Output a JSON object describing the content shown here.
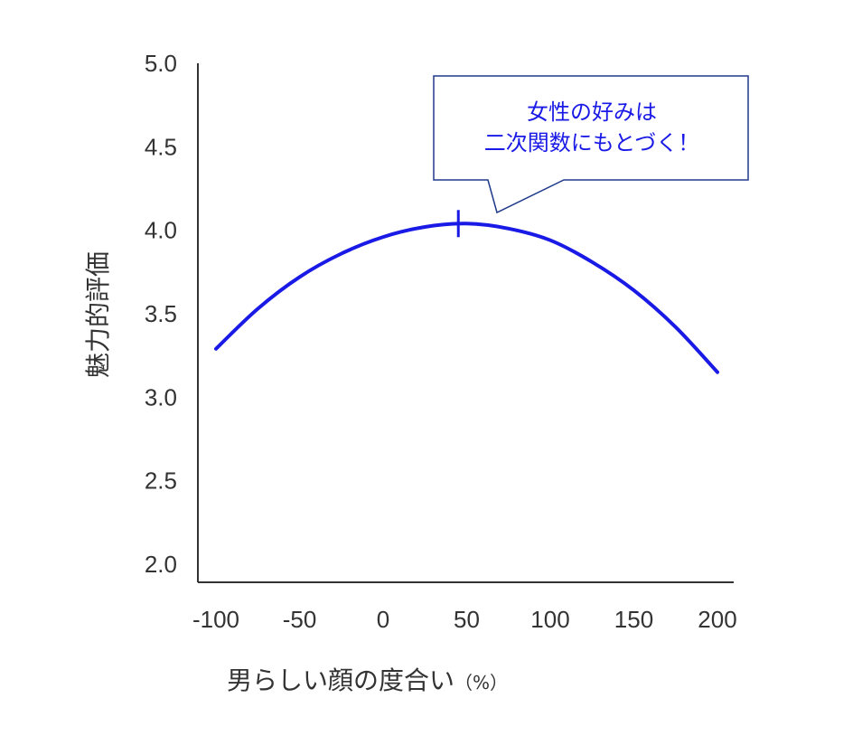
{
  "chart_data": {
    "type": "line",
    "xlabel": "男らしい顔の度合い",
    "xlabel_unit": "（%）",
    "ylabel": "魅力的評価",
    "xlim": [
      -100,
      200
    ],
    "ylim": [
      2.0,
      5.0
    ],
    "x_ticks": [
      "-100",
      "-50",
      "0",
      "50",
      "100",
      "150",
      "200"
    ],
    "y_ticks": [
      "2.0",
      "2.5",
      "3.0",
      "3.5",
      "4.0",
      "4.5",
      "5.0"
    ],
    "series": [
      {
        "color": "#1a1ae6",
        "x": [
          -100,
          -75,
          -50,
          -25,
          0,
          25,
          50,
          75,
          100,
          125,
          150,
          175,
          200
        ],
        "y": [
          3.29,
          3.53,
          3.72,
          3.86,
          3.96,
          4.02,
          4.04,
          4.01,
          3.94,
          3.81,
          3.64,
          3.42,
          3.15
        ]
      }
    ],
    "peak_marker": {
      "x": 45,
      "y": 4.04
    },
    "annotation": {
      "lines": [
        "女性の好みは",
        "二次関数にもとづく！"
      ],
      "border_color": "#1f3a8a",
      "text_color": "#1a1ae6"
    },
    "grid": false,
    "legend": "none"
  }
}
